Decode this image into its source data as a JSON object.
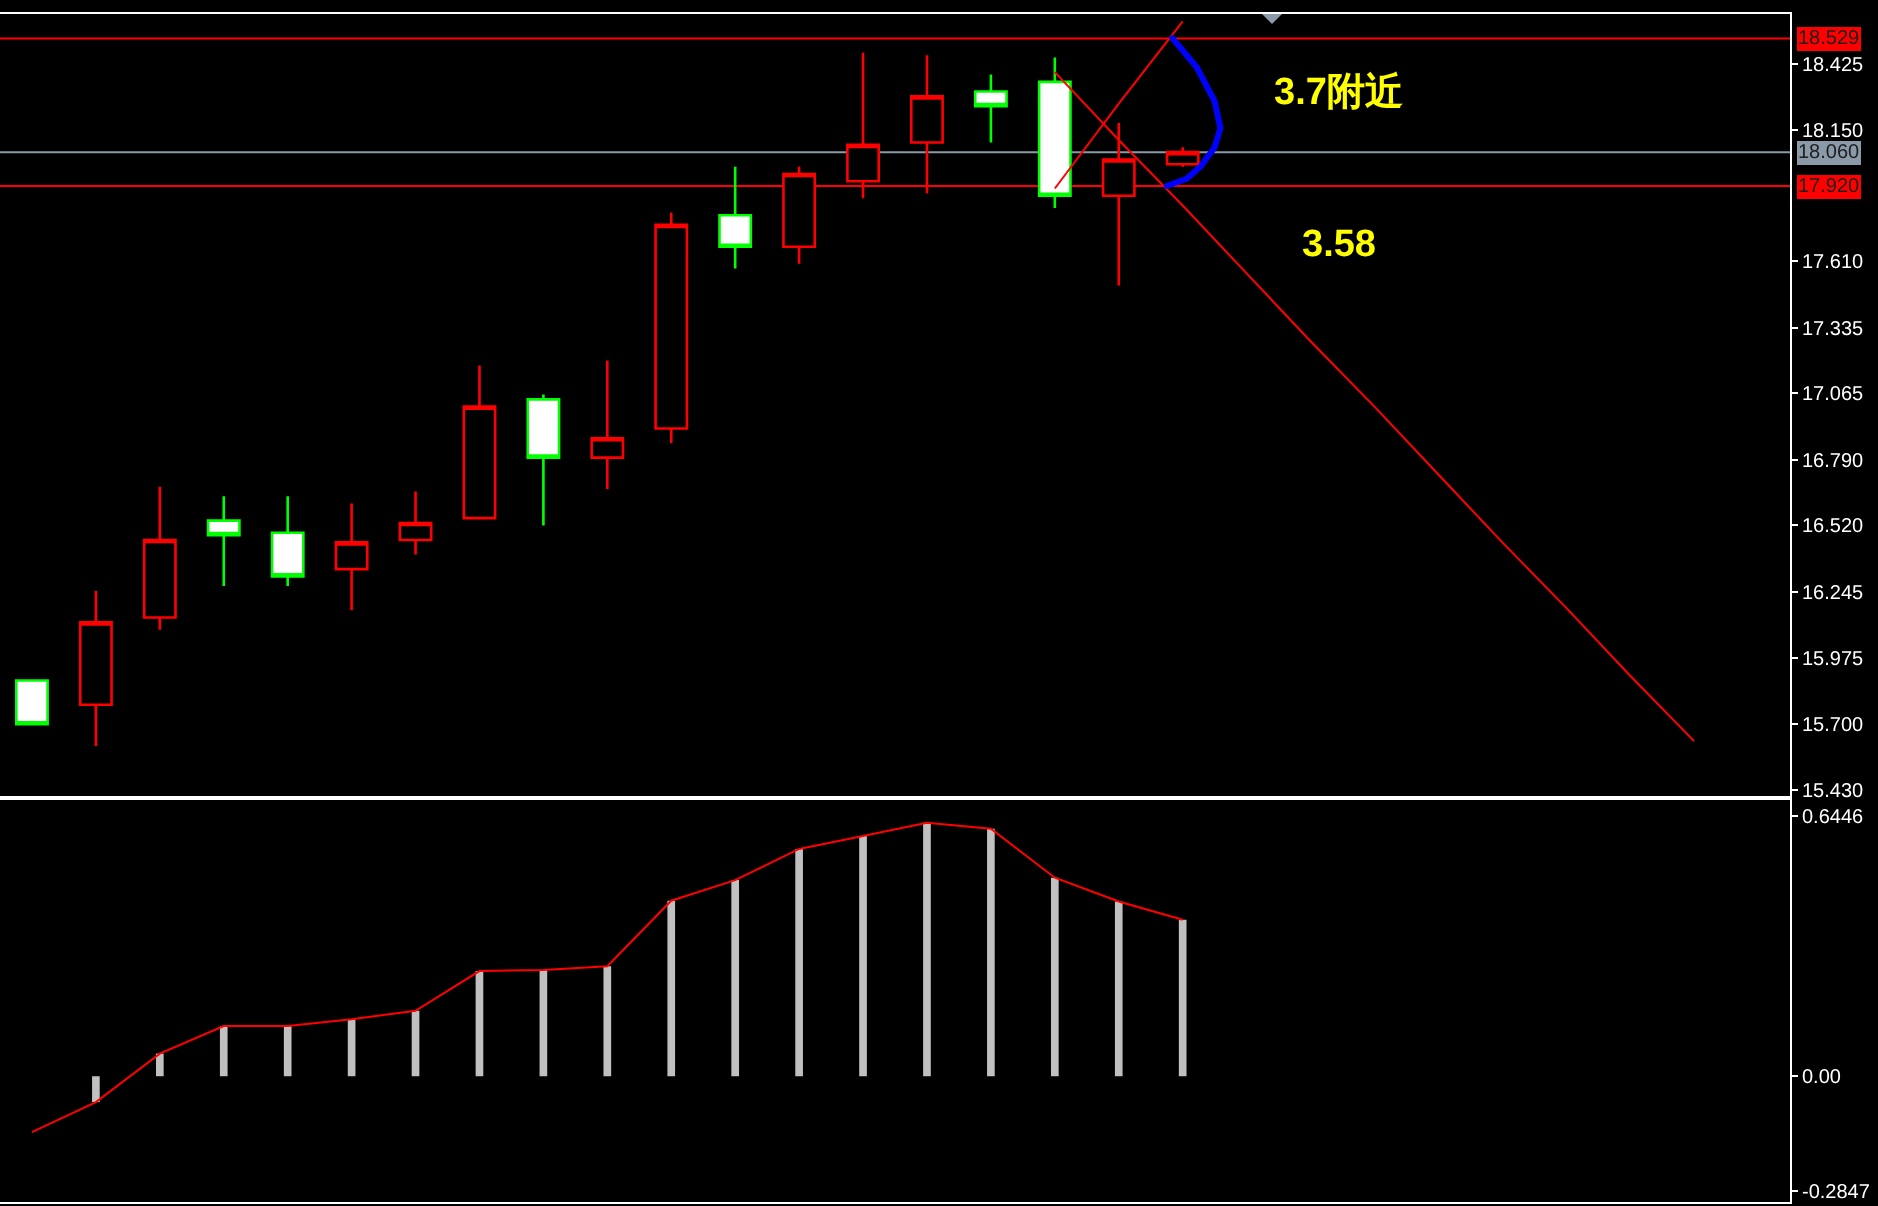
{
  "chart_data": [
    {
      "type": "candlestick",
      "categories": [
        null,
        null,
        null,
        null,
        null,
        null,
        null,
        null,
        null,
        null,
        null,
        null,
        null,
        null,
        null,
        null,
        null,
        null,
        null,
        null,
        null,
        null,
        null,
        null,
        null,
        null,
        null,
        null
      ],
      "ohlc": [
        [
          15.88,
          15.88,
          15.7,
          15.7
        ],
        [
          15.78,
          16.25,
          15.61,
          16.12
        ],
        [
          16.14,
          16.68,
          16.09,
          16.46
        ],
        [
          16.54,
          16.64,
          16.27,
          16.48
        ],
        [
          16.49,
          16.64,
          16.27,
          16.31
        ],
        [
          16.34,
          16.61,
          16.17,
          16.45
        ],
        [
          16.46,
          16.66,
          16.4,
          16.53
        ],
        [
          16.55,
          17.18,
          16.55,
          17.01
        ],
        [
          17.04,
          17.06,
          16.52,
          16.8
        ],
        [
          16.8,
          17.2,
          16.67,
          16.88
        ],
        [
          16.92,
          17.81,
          16.86,
          17.76
        ],
        [
          17.8,
          18.0,
          17.58,
          17.67
        ],
        [
          17.67,
          18.0,
          17.6,
          17.97
        ],
        [
          17.94,
          18.47,
          17.87,
          18.09
        ],
        [
          18.1,
          18.46,
          17.89,
          18.29
        ],
        [
          18.31,
          18.38,
          18.1,
          18.25
        ],
        [
          18.35,
          18.45,
          17.83,
          17.88
        ],
        [
          17.88,
          18.18,
          17.51,
          18.03
        ],
        [
          18.01,
          18.08,
          18.0,
          18.06
        ],
        null,
        null,
        null,
        null,
        null,
        null,
        null,
        null,
        null
      ],
      "colors": [
        "#00ff00",
        "#ff0000",
        "#ff0000",
        "#00ff00",
        "#00ff00",
        "#ff0000",
        "#ff0000",
        "#ff0000",
        "#00ff00",
        "#ff0000",
        "#ff0000",
        "#00ff00",
        "#ff0000",
        "#ff0000",
        "#ff0000",
        "#00ff00",
        "#00ff00",
        "#ff0000",
        "#ff0000",
        null,
        null,
        null,
        null,
        null,
        null,
        null,
        null,
        null
      ],
      "series": [
        {
          "type": "line",
          "color": "#ff0000",
          "values": [
            null,
            null,
            null,
            null,
            null,
            null,
            null,
            null,
            null,
            null,
            null,
            null,
            null,
            null,
            null,
            null,
            18.39,
            18.11,
            17.84,
            17.56,
            17.28,
            17.01,
            16.73,
            16.45,
            16.18,
            15.9,
            15.63,
            null
          ]
        },
        {
          "type": "line",
          "color": "#ff0000",
          "values": [
            null,
            null,
            null,
            null,
            null,
            null,
            null,
            null,
            null,
            null,
            null,
            null,
            null,
            null,
            null,
            null,
            17.91,
            18.26,
            18.6,
            null,
            null,
            null,
            null,
            null,
            null,
            null,
            null,
            null
          ]
        }
      ],
      "ylim": [
        15.405,
        18.63
      ],
      "yticks": [
        {
          "value": 18.425,
          "label": "18.425"
        },
        {
          "value": 18.15,
          "label": "18.150"
        },
        {
          "value": 17.61,
          "label": "17.610"
        },
        {
          "value": 17.335,
          "label": "17.335"
        },
        {
          "value": 17.065,
          "label": "17.065"
        },
        {
          "value": 16.79,
          "label": "16.790"
        },
        {
          "value": 16.52,
          "label": "16.520"
        },
        {
          "value": 16.245,
          "label": "16.245"
        },
        {
          "value": 15.975,
          "label": "15.975"
        },
        {
          "value": 15.7,
          "label": "15.700"
        },
        {
          "value": 15.43,
          "label": "15.430"
        }
      ],
      "ref_lines": [
        {
          "axis": "y",
          "value": 18.529,
          "label": "18.529",
          "color": "#ff0000"
        },
        {
          "axis": "y",
          "value": 18.06,
          "label": "18.060",
          "color": "#8a9aa8"
        },
        {
          "axis": "y",
          "value": 17.92,
          "label": "17.920",
          "color": "#ff0000"
        }
      ],
      "annotations": [
        "3.7附近",
        "3.58"
      ],
      "tick_labels": "y",
      "grid": false
    },
    {
      "type": "bar",
      "categories": [
        null,
        null,
        null,
        null,
        null,
        null,
        null,
        null,
        null,
        null,
        null,
        null,
        null,
        null,
        null,
        null,
        null,
        null,
        null,
        null,
        null,
        null,
        null,
        null,
        null,
        null,
        null,
        null
      ],
      "series": [
        {
          "color": "#c0c0c0",
          "values": [
            null,
            -0.064,
            0.056,
            0.124,
            0.124,
            0.141,
            0.162,
            0.26,
            0.263,
            0.272,
            0.434,
            0.485,
            0.562,
            0.594,
            0.627,
            0.612,
            0.491,
            0.432,
            0.387,
            null,
            null,
            null,
            null,
            null,
            null,
            null,
            null,
            null
          ]
        },
        {
          "type": "line",
          "color": "#ff0000",
          "values": [
            -0.138,
            -0.064,
            0.056,
            0.124,
            0.124,
            0.141,
            0.162,
            0.26,
            0.263,
            0.272,
            0.434,
            0.485,
            0.562,
            0.594,
            0.627,
            0.612,
            0.491,
            0.432,
            0.387,
            null,
            null,
            null,
            null,
            null,
            null,
            null,
            null,
            null
          ]
        }
      ],
      "ylim": [
        -0.311,
        0.682
      ],
      "yticks": [
        0.6446,
        {
          "value": 0,
          "label": "0.00"
        },
        -0.2847
      ],
      "tick_labels": "y",
      "grid": false
    }
  ]
}
